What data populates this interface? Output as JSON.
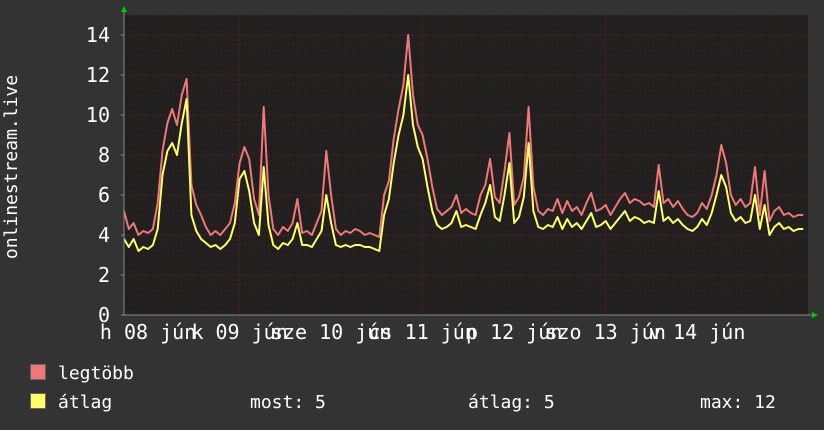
{
  "chart_data": {
    "type": "line",
    "ylabel": "onlinestream.live",
    "ylim": [
      0,
      15
    ],
    "yticks": [
      0,
      2,
      4,
      6,
      8,
      10,
      12,
      14
    ],
    "xlim": [
      0,
      142
    ],
    "xticks": [
      {
        "x": 5,
        "label": "h 08 jún"
      },
      {
        "x": 24,
        "label": "k 09 jún"
      },
      {
        "x": 43,
        "label": "sze 10 jún"
      },
      {
        "x": 62,
        "label": "cs 11 jún"
      },
      {
        "x": 81,
        "label": "p 12 jún"
      },
      {
        "x": 100,
        "label": "szo 13 jún"
      },
      {
        "x": 119,
        "label": "v 14 jún"
      }
    ],
    "grid": true,
    "x": [
      0,
      1,
      2,
      3,
      4,
      5,
      6,
      7,
      8,
      9,
      10,
      11,
      12,
      13,
      14,
      15,
      16,
      17,
      18,
      19,
      20,
      21,
      22,
      23,
      24,
      25,
      26,
      27,
      28,
      29,
      30,
      31,
      32,
      33,
      34,
      35,
      36,
      37,
      38,
      39,
      40,
      41,
      42,
      43,
      44,
      45,
      46,
      47,
      48,
      49,
      50,
      51,
      52,
      53,
      54,
      55,
      56,
      57,
      58,
      59,
      60,
      61,
      62,
      63,
      64,
      65,
      66,
      67,
      68,
      69,
      70,
      71,
      72,
      73,
      74,
      75,
      76,
      77,
      78,
      79,
      80,
      81,
      82,
      83,
      84,
      85,
      86,
      87,
      88,
      89,
      90,
      91,
      92,
      93,
      94,
      95,
      96,
      97,
      98,
      99,
      100,
      101,
      102,
      103,
      104,
      105,
      106,
      107,
      108,
      109,
      110,
      111,
      112,
      113,
      114,
      115,
      116,
      117,
      118,
      119,
      120,
      121,
      122,
      123,
      124,
      125,
      126,
      127,
      128,
      129,
      130,
      131,
      132,
      133,
      134,
      135,
      136,
      137,
      138,
      139,
      140,
      141
    ],
    "series": [
      {
        "name": "legtöbb",
        "color": "#f07878",
        "values": [
          5.2,
          4.3,
          4.6,
          4.0,
          4.2,
          4.1,
          4.3,
          5.6,
          8.2,
          9.6,
          10.3,
          9.5,
          11.0,
          11.8,
          6.5,
          5.5,
          5.0,
          4.4,
          4.0,
          4.2,
          4.0,
          4.3,
          4.6,
          5.6,
          7.6,
          8.4,
          7.8,
          5.8,
          5.0,
          10.4,
          6.0,
          4.3,
          4.0,
          4.4,
          4.2,
          4.6,
          5.8,
          4.1,
          4.2,
          4.0,
          4.6,
          5.2,
          8.2,
          6.0,
          4.3,
          4.0,
          4.2,
          4.1,
          4.3,
          4.2,
          4.0,
          4.1,
          4.0,
          3.9,
          6.0,
          6.7,
          8.8,
          10.3,
          11.5,
          14.0,
          11.0,
          9.5,
          9.0,
          7.8,
          6.4,
          5.3,
          5.0,
          5.2,
          5.4,
          6.0,
          5.1,
          5.3,
          5.1,
          5.0,
          6.0,
          6.5,
          7.8,
          5.9,
          5.6,
          7.2,
          9.1,
          5.5,
          5.9,
          6.9,
          10.4,
          6.4,
          5.2,
          5.0,
          5.3,
          5.2,
          5.8,
          5.1,
          5.7,
          5.2,
          5.4,
          5.0,
          5.6,
          6.1,
          5.2,
          5.3,
          5.5,
          5.0,
          5.4,
          5.8,
          6.1,
          5.6,
          5.8,
          5.7,
          5.5,
          5.6,
          5.4,
          7.5,
          5.6,
          5.8,
          5.4,
          5.7,
          5.3,
          5.0,
          4.9,
          5.1,
          5.6,
          5.3,
          6.0,
          7.0,
          8.5,
          7.6,
          6.0,
          5.5,
          5.8,
          5.4,
          5.6,
          7.4,
          5.0,
          7.2,
          4.7,
          5.2,
          5.4,
          5.0,
          5.1,
          4.9,
          5.0,
          5.0
        ]
      },
      {
        "name": "átlag",
        "color": "#ffff66",
        "values": [
          3.8,
          3.4,
          3.8,
          3.2,
          3.4,
          3.3,
          3.5,
          4.3,
          7.0,
          8.2,
          8.6,
          8.0,
          9.6,
          10.8,
          5.0,
          4.2,
          3.8,
          3.6,
          3.4,
          3.5,
          3.3,
          3.5,
          3.8,
          4.6,
          6.8,
          7.2,
          6.2,
          4.6,
          4.0,
          7.4,
          4.5,
          3.5,
          3.3,
          3.6,
          3.5,
          3.8,
          4.6,
          3.5,
          3.5,
          3.4,
          3.8,
          4.2,
          6.0,
          4.6,
          3.5,
          3.4,
          3.5,
          3.4,
          3.5,
          3.5,
          3.4,
          3.4,
          3.3,
          3.2,
          5.0,
          5.8,
          7.6,
          9.0,
          10.0,
          12.0,
          9.5,
          8.4,
          7.8,
          6.4,
          5.2,
          4.5,
          4.3,
          4.4,
          4.6,
          5.2,
          4.4,
          4.5,
          4.4,
          4.3,
          5.0,
          5.6,
          6.5,
          4.9,
          4.7,
          6.0,
          7.6,
          4.6,
          4.9,
          5.9,
          8.6,
          5.2,
          4.4,
          4.3,
          4.5,
          4.4,
          4.9,
          4.3,
          4.8,
          4.4,
          4.6,
          4.3,
          4.7,
          5.1,
          4.4,
          4.5,
          4.7,
          4.3,
          4.6,
          4.9,
          5.2,
          4.7,
          4.9,
          4.8,
          4.6,
          4.7,
          4.6,
          6.2,
          4.7,
          4.9,
          4.6,
          4.8,
          4.5,
          4.3,
          4.2,
          4.4,
          4.8,
          4.5,
          5.1,
          6.0,
          7.0,
          6.4,
          5.1,
          4.7,
          4.9,
          4.6,
          4.7,
          6.0,
          4.3,
          5.5,
          4.0,
          4.4,
          4.6,
          4.3,
          4.4,
          4.2,
          4.3,
          4.3
        ]
      }
    ]
  },
  "legend": [
    {
      "label": "legtöbb",
      "color": "#f07878"
    },
    {
      "label": "átlag",
      "color": "#ffff66"
    }
  ],
  "stats": {
    "now": "most: 5",
    "avg": "átlag: 5",
    "max": "max: 12"
  },
  "colors": {
    "background": "#333333",
    "plot": "#202020",
    "grid": "#6a1a1a",
    "axis": "#888888",
    "arrow": "#00cc00"
  }
}
